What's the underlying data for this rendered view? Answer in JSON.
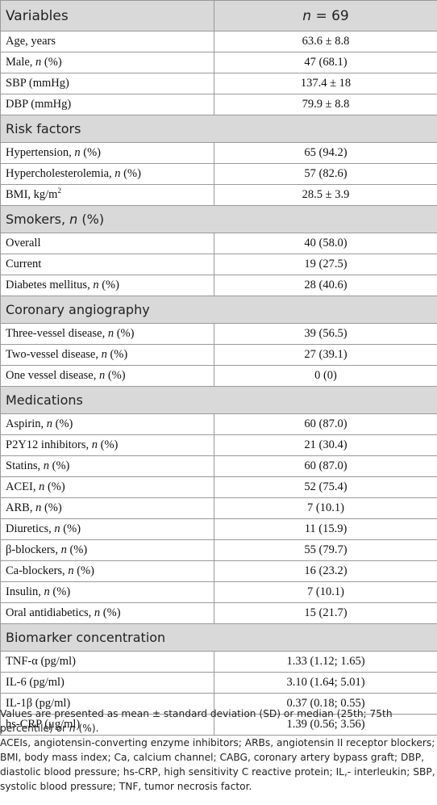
{
  "table": {
    "header": {
      "variables": "Variables",
      "n_label": "n",
      "n_value": " = 69"
    },
    "sections": [
      {
        "title": "",
        "rows": [
          {
            "name": "Age, years",
            "n": false,
            "value": "63.6 ± 8.8"
          },
          {
            "name": "Male, ",
            "n": true,
            "value": "47 (68.1)"
          },
          {
            "name": "SBP (mmHg)",
            "n": false,
            "value": "137.4 ± 18"
          },
          {
            "name": "DBP (mmHg)",
            "n": false,
            "value": "79.9 ± 8.8"
          }
        ]
      },
      {
        "title": "Risk factors",
        "rows": [
          {
            "name": "Hypertension, ",
            "n": true,
            "value": "65 (94.2)"
          },
          {
            "name": "Hypercholesterolemia, ",
            "n": true,
            "value": "57 (82.6)"
          },
          {
            "name": "BMI, kg/m",
            "sup": "2",
            "n": false,
            "value": "28.5 ± 3.9"
          }
        ]
      },
      {
        "title": "Smokers, ",
        "title_n": true,
        "title_suffix": " (%)",
        "rows": [
          {
            "name": "Overall",
            "n": false,
            "value": "40 (58.0)"
          },
          {
            "name": "Current",
            "n": false,
            "value": "19 (27.5)"
          },
          {
            "name": "Diabetes mellitus, ",
            "n": true,
            "value": "28 (40.6)"
          }
        ]
      },
      {
        "title": "Coronary angiography",
        "rows": [
          {
            "name": "Three-vessel disease, ",
            "n": true,
            "value": "39 (56.5)"
          },
          {
            "name": "Two-vessel disease, ",
            "n": true,
            "value": "27 (39.1)"
          },
          {
            "name": "One vessel disease, ",
            "n": true,
            "value": "0 (0)"
          }
        ]
      },
      {
        "title": "Medications",
        "rows": [
          {
            "name": "Aspirin, ",
            "n": true,
            "value": "60 (87.0)"
          },
          {
            "name": "P2Y12 inhibitors, ",
            "n": true,
            "value": "21 (30.4)"
          },
          {
            "name": "Statins, ",
            "n": true,
            "value": "60 (87.0)"
          },
          {
            "name": "ACEI, ",
            "n": true,
            "value": "52 (75.4)"
          },
          {
            "name": "ARB, ",
            "n": true,
            "value": "7 (10.1)"
          },
          {
            "name": "Diuretics, ",
            "n": true,
            "value": "11 (15.9)"
          },
          {
            "name": "β-blockers, ",
            "n": true,
            "value": "55 (79.7)"
          },
          {
            "name": "Ca-blockers, ",
            "n": true,
            "value": "16 (23.2)"
          },
          {
            "name": "Insulin, ",
            "n": true,
            "value": "7 (10.1)"
          },
          {
            "name": "Oral antidiabetics, ",
            "n": true,
            "value": "15 (21.7)"
          }
        ]
      },
      {
        "title": "Biomarker concentration",
        "rows": [
          {
            "name": "TNF-α (pg/ml)",
            "n": false,
            "value": "1.33 (1.12; 1.65)"
          },
          {
            "name": "IL-6 (pg/ml)",
            "n": false,
            "value": "3.10 (1.64; 5.01)"
          },
          {
            "name": "IL-1β (pg/ml)",
            "n": false,
            "value": "0.37 (0.18; 0.55)"
          },
          {
            "name": "hs-CRP (μg/ml)",
            "n": false,
            "value": "1.39 (0.56; 3.56)"
          }
        ]
      }
    ]
  },
  "notes": {
    "line1_a": "Values are presented as mean ± standard deviation (SD) or median (25th; 75th percentile) or ",
    "line1_n": "n",
    "line1_b": " (%).",
    "line2": "ACEIs, angiotensin-converting enzyme inhibitors; ARBs, angiotensin II receptor blockers; BMI, body mass index; Ca, calcium channel; CABG, coronary artery bypass graft; DBP, diastolic blood pressure; hs-CRP, high sensitivity C reactive protein; IL,- interleukin; SBP, systolic blood pressure; TNF, tumor necrosis factor."
  }
}
